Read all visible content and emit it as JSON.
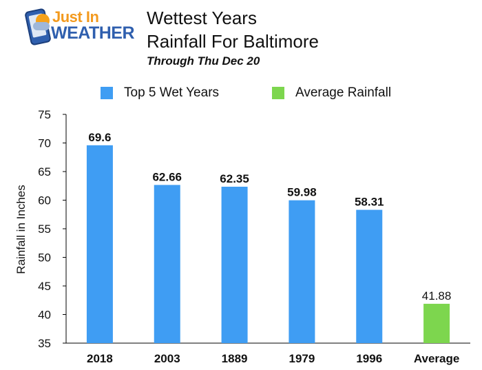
{
  "logo": {
    "line1": "Just In",
    "line2": "WEATHER"
  },
  "colors": {
    "top": "#3f9df3",
    "avg": "#7dd64e",
    "axis": "#000000",
    "grid": "#cccccc"
  },
  "chart_data": {
    "type": "bar",
    "title": "Wettest Years",
    "title2": "Rainfall For Baltimore",
    "subtitle": "Through Thu Dec 20",
    "xlabel": "",
    "ylabel": "Rainfall in Inches",
    "ylim": [
      35,
      75
    ],
    "yticks": [
      35,
      40,
      45,
      50,
      55,
      60,
      65,
      70,
      75
    ],
    "grid": false,
    "legend_position": "top",
    "categories": [
      "2018",
      "2003",
      "1889",
      "1979",
      "1996",
      "Average"
    ],
    "series": [
      {
        "name": "Top 5 Wet Years",
        "color": "#3f9df3",
        "values": [
          69.6,
          62.66,
          62.35,
          59.98,
          58.31,
          null
        ],
        "labels": [
          "69.6",
          "62.66",
          "62.35",
          "59.98",
          "58.31",
          ""
        ]
      },
      {
        "name": "Average Rainfall",
        "color": "#7dd64e",
        "values": [
          null,
          null,
          null,
          null,
          null,
          41.88
        ],
        "labels": [
          "",
          "",
          "",
          "",
          "",
          "41.88"
        ]
      }
    ]
  }
}
